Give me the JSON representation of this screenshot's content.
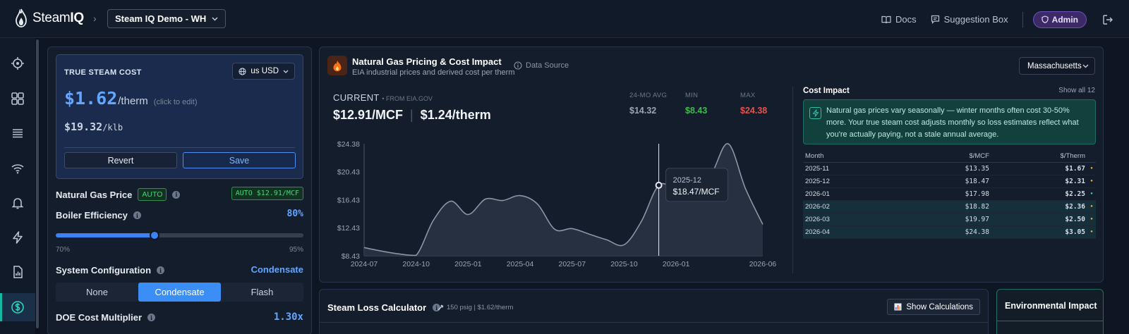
{
  "header": {
    "logo_text_regular": "Steam",
    "logo_text_bold": "IQ",
    "site_selector": "Steam IQ Demo - WH",
    "docs_label": "Docs",
    "suggestion_label": "Suggestion Box",
    "admin_label": "Admin"
  },
  "sidebar": {
    "items": [
      "target-icon",
      "grid-icon",
      "list-icon",
      "wifi-icon",
      "bell-icon",
      "bolt-icon",
      "report-icon",
      "dollar-icon"
    ],
    "active": "dollar-icon"
  },
  "cost_card": {
    "title": "TRUE STEAM COST",
    "currency": "us USD",
    "cost_value": "$1.62",
    "cost_unit": "/therm",
    "cost_hint": "(click to edit)",
    "klb_value": "$19.32",
    "klb_unit": "/klb",
    "revert_label": "Revert",
    "save_label": "Save"
  },
  "settings": {
    "gas_price_label": "Natural Gas Price",
    "gas_auto_tag": "AUTO",
    "gas_auto_value": "AUTO $12.91/MCF",
    "boiler_label": "Boiler Efficiency",
    "boiler_value": "80%",
    "boiler_fraction": 0.4,
    "boiler_min": "70%",
    "boiler_max": "95%",
    "system_label": "System Configuration",
    "system_value": "Condensate",
    "system_options": [
      "None",
      "Condensate",
      "Flash"
    ],
    "system_selected": 1,
    "doe_label": "DOE Cost Multiplier",
    "doe_value": "1.30x"
  },
  "gas_panel": {
    "title": "Natural Gas Pricing & Cost Impact",
    "subtitle": "EIA industrial prices and derived cost per therm",
    "data_source": "Data Source",
    "state": "Massachusetts",
    "current_label": "CURRENT",
    "current_source": "• FROM EIA.GOV",
    "current_mcf": "$12.91/MCF",
    "current_therm": "$1.24/therm",
    "avg_label": "24-MO AVG",
    "avg_value": "$14.32",
    "min_label": "MIN",
    "min_value": "$8.43",
    "max_label": "MAX",
    "max_value": "$24.38",
    "colors": {
      "avg": "#9aa5b5",
      "min": "#3fb950",
      "max": "#e5534b"
    }
  },
  "chart_data": {
    "type": "area",
    "ylabel": "",
    "xlabel": "",
    "y_ticks": [
      "$24.38",
      "$20.43",
      "$16.43",
      "$12.43",
      "$8.43"
    ],
    "x_ticks": [
      "2024-07",
      "2024-10",
      "2025-01",
      "2025-04",
      "2025-07",
      "2025-10",
      "2026-01",
      "2026-06"
    ],
    "ylim": [
      8.43,
      24.38
    ],
    "xlim": [
      "2024-07",
      "2026-06"
    ],
    "x": [
      "2024-07",
      "2024-08",
      "2024-09",
      "2024-10",
      "2024-11",
      "2024-12",
      "2025-01",
      "2025-02",
      "2025-03",
      "2025-04",
      "2025-05",
      "2025-06",
      "2025-07",
      "2025-08",
      "2025-09",
      "2025-10",
      "2025-11",
      "2025-12",
      "2026-01",
      "2026-02",
      "2026-03",
      "2026-04",
      "2026-05",
      "2026-06"
    ],
    "values": [
      9.6,
      9.1,
      8.7,
      8.5,
      13.5,
      16.2,
      14.3,
      16.5,
      16.3,
      17.0,
      15.8,
      12.2,
      12.3,
      11.5,
      10.7,
      10.0,
      13.35,
      18.47,
      17.98,
      18.82,
      19.97,
      24.38,
      18.0,
      12.9
    ],
    "tooltip": {
      "label": "2025-12",
      "value": "$18.47/MCF"
    },
    "colors": {
      "line": "#8b95a6",
      "fill": "#2a3444"
    }
  },
  "impact": {
    "title": "Cost Impact",
    "show_all": "Show all 12",
    "note": "Natural gas prices vary seasonally — winter months often cost 30-50% more. Your true steam cost adjusts monthly so loss estimates reflect what you're actually paying, not a stale annual average.",
    "columns": [
      "Month",
      "$/MCF",
      "$/Therm"
    ],
    "rows": [
      {
        "month": "2025-11",
        "mcf": "$13.35",
        "therm": "$1.67",
        "dot": "#e3b341",
        "hl": false
      },
      {
        "month": "2025-12",
        "mcf": "$18.47",
        "therm": "$2.31",
        "dot": "#e3b341",
        "hl": false
      },
      {
        "month": "2026-01",
        "mcf": "$17.98",
        "therm": "$2.25",
        "dot": "#2dd4bf",
        "hl": false
      },
      {
        "month": "2026-02",
        "mcf": "$18.82",
        "therm": "$2.36",
        "dot": "#e3b341",
        "hl": true
      },
      {
        "month": "2026-03",
        "mcf": "$19.97",
        "therm": "$2.50",
        "dot": "#e3b341",
        "hl": true
      },
      {
        "month": "2026-04",
        "mcf": "$24.38",
        "therm": "$3.05",
        "dot": "#e3b341",
        "hl": true
      }
    ]
  },
  "loss_panel": {
    "title": "Steam Loss Calculator",
    "meta": "150 psig | $1.62/therm",
    "calc_button": "Show Calculations"
  },
  "env_panel": {
    "title": "Environmental Impact"
  }
}
